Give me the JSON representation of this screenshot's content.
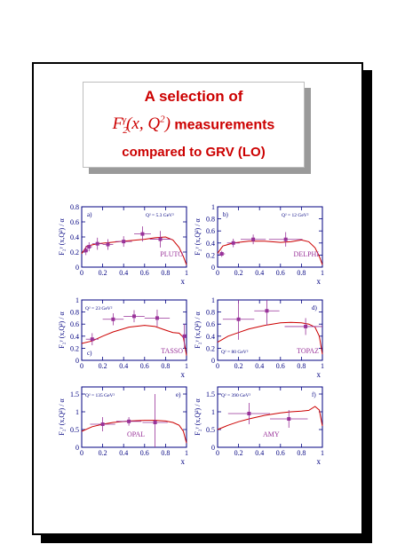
{
  "title": {
    "line1": "A selection of",
    "line2_math": "F",
    "line2_sub": "2",
    "line2_sup": "γ",
    "line2_args": "(x, Q",
    "line2_args_sup": "2",
    "line2_args_end": ")",
    "line2_text": "measurements",
    "line3": "compared to GRV (LO)"
  },
  "colors": {
    "frame": "#000080",
    "curve": "#cc0000",
    "points": "#993399",
    "title": "#cc0000"
  },
  "y_axis_label": "F₂ᵞ (x,Q²) / α",
  "chart_data": [
    {
      "type": "scatter",
      "letter": "a)",
      "experiment": "PLUTO",
      "q2_label": "Q² = 5.3 GeV²",
      "xlim": [
        0,
        1
      ],
      "ylim": [
        0,
        0.8
      ],
      "yticks": [
        "0",
        "0.2",
        "0.4",
        "0.6",
        "0.8"
      ],
      "xticks": [
        "0",
        "0.2",
        "0.4",
        "0.6",
        "0.8",
        "1"
      ],
      "xlabel": "x",
      "points": [
        {
          "x": 0.04,
          "y": 0.22,
          "xerr": 0.02,
          "yerr": 0.06
        },
        {
          "x": 0.07,
          "y": 0.27,
          "xerr": 0.03,
          "yerr": 0.06
        },
        {
          "x": 0.15,
          "y": 0.31,
          "xerr": 0.05,
          "yerr": 0.08
        },
        {
          "x": 0.25,
          "y": 0.3,
          "xerr": 0.05,
          "yerr": 0.07
        },
        {
          "x": 0.4,
          "y": 0.34,
          "xerr": 0.08,
          "yerr": 0.07
        },
        {
          "x": 0.58,
          "y": 0.44,
          "xerr": 0.08,
          "yerr": 0.1
        },
        {
          "x": 0.75,
          "y": 0.37,
          "xerr": 0.1,
          "yerr": 0.11
        }
      ],
      "curve": {
        "x": [
          0.0,
          0.05,
          0.15,
          0.3,
          0.45,
          0.6,
          0.7,
          0.8,
          0.87,
          0.93,
          0.97,
          1.0
        ],
        "y": [
          0.18,
          0.28,
          0.31,
          0.33,
          0.35,
          0.37,
          0.39,
          0.4,
          0.36,
          0.26,
          0.14,
          0.03
        ]
      }
    },
    {
      "type": "scatter",
      "letter": "b)",
      "experiment": "DELPHI",
      "q2_label": "Q² = 12 GeV²",
      "xlim": [
        0,
        1
      ],
      "ylim": [
        0,
        1
      ],
      "yticks": [
        "0",
        "0.2",
        "0.4",
        "0.6",
        "0.8",
        "1"
      ],
      "xticks": [
        "0",
        "0.2",
        "0.4",
        "0.6",
        "0.8",
        "1"
      ],
      "xlabel": "x",
      "points": [
        {
          "x": 0.04,
          "y": 0.22,
          "xerr": 0.03,
          "yerr": 0.05
        },
        {
          "x": 0.15,
          "y": 0.4,
          "xerr": 0.06,
          "yerr": 0.07
        },
        {
          "x": 0.34,
          "y": 0.46,
          "xerr": 0.12,
          "yerr": 0.08
        },
        {
          "x": 0.65,
          "y": 0.46,
          "xerr": 0.16,
          "yerr": 0.12
        }
      ],
      "curve": {
        "x": [
          0.0,
          0.05,
          0.15,
          0.3,
          0.45,
          0.6,
          0.7,
          0.8,
          0.87,
          0.93,
          0.97,
          1.0
        ],
        "y": [
          0.23,
          0.35,
          0.4,
          0.43,
          0.43,
          0.41,
          0.42,
          0.45,
          0.42,
          0.32,
          0.18,
          0.04
        ]
      }
    },
    {
      "type": "scatter",
      "letter": "c)",
      "experiment": "TASSO",
      "q2_label": "Q² = 23 GeV²",
      "xlim": [
        0,
        1
      ],
      "ylim": [
        0,
        1
      ],
      "yticks": [
        "0",
        "0.2",
        "0.4",
        "0.6",
        "0.8",
        "1"
      ],
      "xticks": [
        "0",
        "0.2",
        "0.4",
        "0.6",
        "0.8",
        "1"
      ],
      "xlabel": "x",
      "points": [
        {
          "x": 0.1,
          "y": 0.35,
          "xerr": 0.06,
          "yerr": 0.1
        },
        {
          "x": 0.3,
          "y": 0.68,
          "xerr": 0.1,
          "yerr": 0.1
        },
        {
          "x": 0.5,
          "y": 0.73,
          "xerr": 0.1,
          "yerr": 0.1
        },
        {
          "x": 0.72,
          "y": 0.7,
          "xerr": 0.12,
          "yerr": 0.14
        },
        {
          "x": 0.98,
          "y": 0.4,
          "xerr": 0.02,
          "yerr": 0.2
        }
      ],
      "curve": {
        "x": [
          0.0,
          0.1,
          0.2,
          0.3,
          0.45,
          0.6,
          0.7,
          0.8,
          0.87,
          0.93,
          0.97,
          1.0
        ],
        "y": [
          0.28,
          0.32,
          0.4,
          0.47,
          0.55,
          0.58,
          0.56,
          0.5,
          0.46,
          0.45,
          0.38,
          0.08
        ]
      }
    },
    {
      "type": "scatter",
      "letter": "d)",
      "experiment": "TOPAZ",
      "q2_label": "Q² = 80 GeV²",
      "xlim": [
        0,
        1
      ],
      "ylim": [
        0,
        1
      ],
      "yticks": [
        "0",
        "0.2",
        "0.4",
        "0.6",
        "0.8",
        "1"
      ],
      "xticks": [
        "0",
        "0.2",
        "0.4",
        "0.6",
        "0.8",
        "1"
      ],
      "xlabel": "x",
      "points": [
        {
          "x": 0.2,
          "y": 0.68,
          "xerr": 0.15,
          "yerr": 0.34
        },
        {
          "x": 0.47,
          "y": 0.82,
          "xerr": 0.12,
          "yerr": 0.24
        },
        {
          "x": 0.84,
          "y": 0.56,
          "xerr": 0.2,
          "yerr": 0.14
        }
      ],
      "curve": {
        "x": [
          0.0,
          0.1,
          0.2,
          0.3,
          0.45,
          0.6,
          0.7,
          0.8,
          0.87,
          0.93,
          0.97,
          1.0
        ],
        "y": [
          0.3,
          0.4,
          0.46,
          0.52,
          0.58,
          0.62,
          0.63,
          0.62,
          0.6,
          0.55,
          0.4,
          0.1
        ]
      }
    },
    {
      "type": "scatter",
      "letter": "e)",
      "experiment": "OPAL",
      "q2_label": "Q² = 135 GeV²",
      "xlim": [
        0,
        1
      ],
      "ylim": [
        0,
        1.7
      ],
      "yticks": [
        "0",
        "0.5",
        "1",
        "1.5"
      ],
      "xticks": [
        "0",
        "0.2",
        "0.4",
        "0.6",
        "0.8",
        "1"
      ],
      "xlabel": "x",
      "points": [
        {
          "x": 0.2,
          "y": 0.65,
          "xerr": 0.12,
          "yerr": 0.2
        },
        {
          "x": 0.45,
          "y": 0.73,
          "xerr": 0.12,
          "yerr": 0.12
        },
        {
          "x": 0.7,
          "y": 0.7,
          "xerr": 0.12,
          "yerr": 0.8
        }
      ],
      "curve": {
        "x": [
          0.0,
          0.1,
          0.2,
          0.3,
          0.45,
          0.6,
          0.7,
          0.8,
          0.87,
          0.93,
          0.97,
          1.0
        ],
        "y": [
          0.45,
          0.58,
          0.65,
          0.7,
          0.74,
          0.76,
          0.76,
          0.74,
          0.7,
          0.62,
          0.45,
          0.12
        ]
      }
    },
    {
      "type": "scatter",
      "letter": "f)",
      "experiment": "AMY",
      "q2_label": "Q² = 390 GeV²",
      "xlim": [
        0,
        1
      ],
      "ylim": [
        0,
        1.7
      ],
      "yticks": [
        "0",
        "0.5",
        "1",
        "1.5"
      ],
      "xticks": [
        "0",
        "0.2",
        "0.4",
        "0.6",
        "0.8",
        "1"
      ],
      "xlabel": "x",
      "points": [
        {
          "x": 0.3,
          "y": 0.95,
          "xerr": 0.2,
          "yerr": 0.3
        },
        {
          "x": 0.68,
          "y": 0.8,
          "xerr": 0.18,
          "yerr": 0.25
        }
      ],
      "curve": {
        "x": [
          0.0,
          0.1,
          0.2,
          0.3,
          0.45,
          0.6,
          0.7,
          0.8,
          0.87,
          0.93,
          0.97,
          1.0
        ],
        "y": [
          0.5,
          0.62,
          0.72,
          0.8,
          0.9,
          0.97,
          1.0,
          1.02,
          1.04,
          1.15,
          1.05,
          0.6
        ]
      }
    }
  ]
}
